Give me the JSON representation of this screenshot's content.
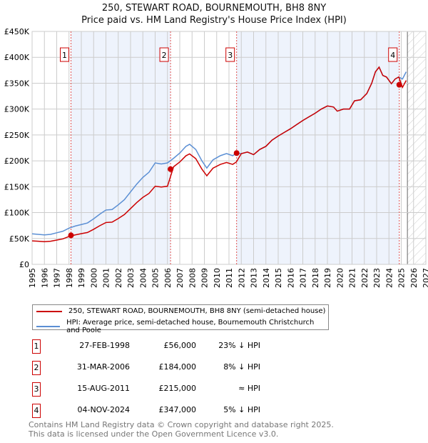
{
  "title": "250, STEWART ROAD, BOURNEMOUTH, BH8 8NY",
  "subtitle": "Price paid vs. HM Land Registry's House Price Index (HPI)",
  "chart_data": {
    "type": "line",
    "xlim": [
      1995,
      2027
    ],
    "ylim": [
      0,
      450000
    ],
    "x_ticks": [
      "1995",
      "1996",
      "1997",
      "1998",
      "1999",
      "2000",
      "2001",
      "2002",
      "2003",
      "2004",
      "2005",
      "2006",
      "2007",
      "2008",
      "2009",
      "2010",
      "2011",
      "2012",
      "2013",
      "2014",
      "2015",
      "2016",
      "2017",
      "2018",
      "2019",
      "2020",
      "2021",
      "2022",
      "2023",
      "2024",
      "2025",
      "2026",
      "2027"
    ],
    "y_ticks": [
      {
        "v": 0,
        "label": "£0"
      },
      {
        "v": 50000,
        "label": "£50K"
      },
      {
        "v": 100000,
        "label": "£100K"
      },
      {
        "v": 150000,
        "label": "£150K"
      },
      {
        "v": 200000,
        "label": "£200K"
      },
      {
        "v": 250000,
        "label": "£250K"
      },
      {
        "v": 300000,
        "label": "£300K"
      },
      {
        "v": 350000,
        "label": "£350K"
      },
      {
        "v": 400000,
        "label": "£400K"
      },
      {
        "v": 450000,
        "label": "£450K"
      }
    ],
    "hpi": {
      "x": [
        1995,
        1995.5,
        1996,
        1996.5,
        1997,
        1997.5,
        1998,
        1998.5,
        1999,
        1999.5,
        2000,
        2000.5,
        2001,
        2001.5,
        2002,
        2002.5,
        2003,
        2003.5,
        2004,
        2004.5,
        2005,
        2005.5,
        2006,
        2006.5,
        2007,
        2007.5,
        2007.8,
        2008.3,
        2008.8,
        2009.2,
        2009.7,
        2010.3,
        2010.8,
        2011.3,
        2011.6,
        2012,
        2012.5,
        2013,
        2013.5,
        2014,
        2014.5,
        2015,
        2015.5,
        2016,
        2016.5,
        2017,
        2017.5,
        2018,
        2018.5,
        2019,
        2019.5,
        2019.8,
        2020.3,
        2020.8,
        2021.2,
        2021.7,
        2022.2,
        2022.6,
        2022.9,
        2023.2,
        2023.5,
        2023.8,
        2024.2,
        2024.5,
        2024.8,
        2025.1,
        2025.4
      ],
      "y": [
        59000,
        58000,
        57000,
        58000,
        61000,
        64000,
        70000,
        74000,
        77000,
        80000,
        88000,
        97000,
        105000,
        106000,
        115000,
        125000,
        140000,
        155000,
        168000,
        178000,
        196000,
        194000,
        196000,
        205000,
        215000,
        228000,
        232000,
        222000,
        200000,
        186000,
        202000,
        210000,
        214000,
        210000,
        215000,
        214000,
        217000,
        212000,
        222000,
        228000,
        240000,
        248000,
        255000,
        262000,
        270000,
        278000,
        285000,
        292000,
        300000,
        306000,
        304000,
        296000,
        300000,
        300000,
        316000,
        318000,
        330000,
        350000,
        372000,
        381000,
        365000,
        362000,
        349000,
        358000,
        362000,
        358000,
        372000
      ]
    },
    "segments": [
      {
        "from": 1995,
        "to": 2006.25,
        "ratio": 0.77
      },
      {
        "from": 2006.25,
        "to": 2011.62,
        "ratio": 0.92
      },
      {
        "from": 2011.62,
        "to": 2024.84,
        "ratio": 1.0
      },
      {
        "from": 2024.84,
        "to": 2026,
        "ratio": 0.955
      }
    ],
    "sales": [
      {
        "n": "1",
        "x": 1998.16,
        "y": 56000
      },
      {
        "n": "2",
        "x": 2006.25,
        "y": 184000
      },
      {
        "n": "3",
        "x": 2011.62,
        "y": 215000
      },
      {
        "n": "4",
        "x": 2024.84,
        "y": 347000
      }
    ],
    "forecast_from": 2025.5,
    "colors": {
      "property": "#cc0000",
      "hpi": "#5b8fd4",
      "shade": "#eef3fc"
    }
  },
  "legend": {
    "property": "250, STEWART ROAD, BOURNEMOUTH, BH8 8NY (semi-detached house)",
    "hpi": "HPI: Average price, semi-detached house, Bournemouth Christchurch and Poole"
  },
  "transactions": [
    {
      "n": "1",
      "date": "27-FEB-1998",
      "price": "£56,000",
      "rel": "23% ↓ HPI"
    },
    {
      "n": "2",
      "date": "31-MAR-2006",
      "price": "£184,000",
      "rel": "8% ↓ HPI"
    },
    {
      "n": "3",
      "date": "15-AUG-2011",
      "price": "£215,000",
      "rel": "≈ HPI"
    },
    {
      "n": "4",
      "date": "04-NOV-2024",
      "price": "£347,000",
      "rel": "5% ↓ HPI"
    }
  ],
  "footer": {
    "line1": "Contains HM Land Registry data © Crown copyright and database right 2025.",
    "line2": "This data is licensed under the Open Government Licence v3.0."
  }
}
